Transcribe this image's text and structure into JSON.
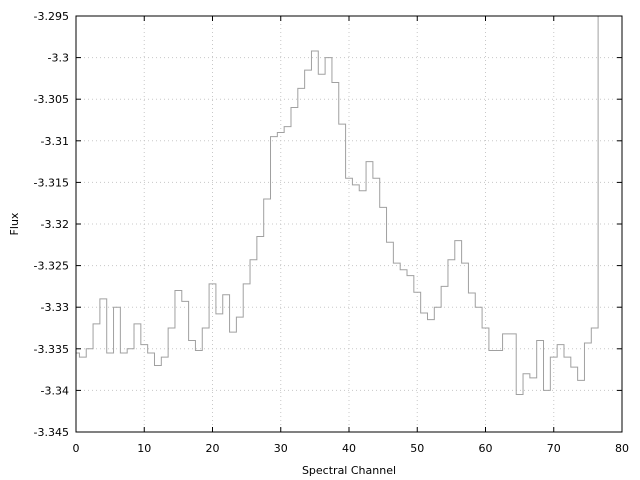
{
  "chart_data": {
    "type": "line",
    "style": "step",
    "xlabel": "Spectral Channel",
    "ylabel": "Flux",
    "xlim": [
      0,
      80
    ],
    "ylim": [
      -3.345,
      -3.295
    ],
    "x_ticks": [
      0,
      10,
      20,
      30,
      40,
      50,
      60,
      70,
      80
    ],
    "y_ticks": [
      -3.295,
      -3.3,
      -3.305,
      -3.31,
      -3.315,
      -3.32,
      -3.325,
      -3.33,
      -3.335,
      -3.34,
      -3.345
    ],
    "x_tick_labels": [
      "0",
      "10",
      "20",
      "30",
      "40",
      "50",
      "60",
      "70",
      "80"
    ],
    "y_tick_labels": [
      "-3.295",
      "-3.3",
      "-3.305",
      "-3.31",
      "-3.315",
      "-3.32",
      "-3.325",
      "-3.33",
      "-3.335",
      "-3.34",
      "-3.345"
    ],
    "grid": true,
    "line_color": "#a0a0a0",
    "grid_color": "#c8c8c8",
    "x": [
      0,
      1,
      2,
      3,
      4,
      5,
      6,
      7,
      8,
      9,
      10,
      11,
      12,
      13,
      14,
      15,
      16,
      17,
      18,
      19,
      20,
      21,
      22,
      23,
      24,
      25,
      26,
      27,
      28,
      29,
      30,
      31,
      32,
      33,
      34,
      35,
      36,
      37,
      38,
      39,
      40,
      41,
      42,
      43,
      44,
      45,
      46,
      47,
      48,
      49,
      50,
      51,
      52,
      53,
      54,
      55,
      56,
      57,
      58,
      59,
      60,
      61,
      62,
      63,
      64,
      65,
      66,
      67,
      68,
      69,
      70,
      71,
      72,
      73,
      74,
      75,
      76
    ],
    "values": [
      -3.3355,
      -3.336,
      -3.335,
      -3.332,
      -3.329,
      -3.3355,
      -3.33,
      -3.3355,
      -3.335,
      -3.332,
      -3.3345,
      -3.3355,
      -3.337,
      -3.336,
      -3.3325,
      -3.328,
      -3.3293,
      -3.334,
      -3.3352,
      -3.3325,
      -3.3272,
      -3.3308,
      -3.3285,
      -3.333,
      -3.3312,
      -3.3272,
      -3.3243,
      -3.3215,
      -3.317,
      -3.3095,
      -3.309,
      -3.3083,
      -3.306,
      -3.3037,
      -3.3015,
      -3.2992,
      -3.302,
      -3.3,
      -3.303,
      -3.308,
      -3.3145,
      -3.3153,
      -3.316,
      -3.3125,
      -3.3145,
      -3.318,
      -3.3222,
      -3.3247,
      -3.3255,
      -3.3262,
      -3.3282,
      -3.3307,
      -3.3315,
      -3.33,
      -3.3275,
      -3.3243,
      -3.322,
      -3.3247,
      -3.3283,
      -3.33,
      -3.3325,
      -3.3352,
      -3.3352,
      -3.3332,
      -3.3332,
      -3.3405,
      -3.338,
      -3.3385,
      -3.334,
      -3.34,
      -3.336,
      -3.3345,
      -3.336,
      -3.3372,
      -3.3388,
      -3.3343,
      -3.3325
    ],
    "final_spike_to": -3.295
  }
}
